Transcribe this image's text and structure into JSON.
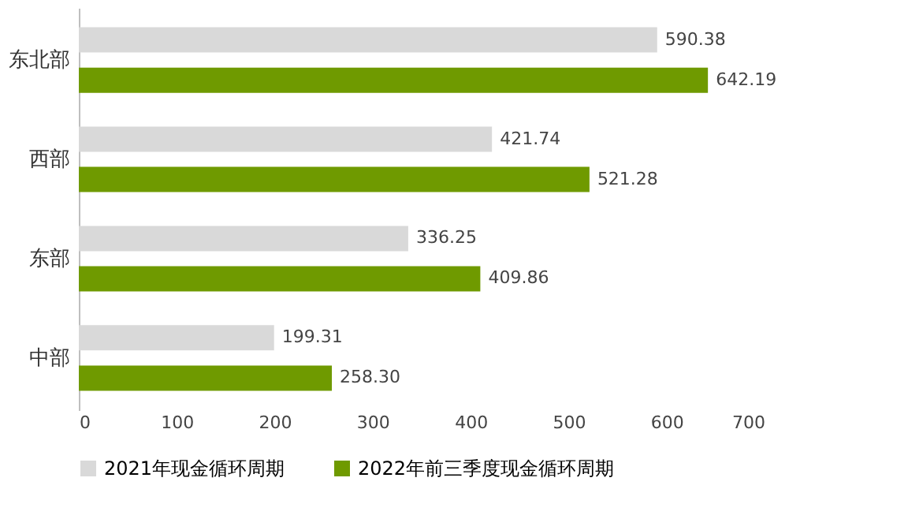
{
  "chart_data": {
    "type": "bar",
    "orientation": "horizontal",
    "categories": [
      "东北部",
      "西部",
      "东部",
      "中部"
    ],
    "series": [
      {
        "name": "2021年现金循环周期",
        "color": "#d9d9d9",
        "values": [
          590.38,
          421.74,
          336.25,
          199.31
        ],
        "value_labels": [
          "590.38",
          "421.74",
          "336.25",
          "199.31"
        ]
      },
      {
        "name": "2022年前三季度现金循环周期",
        "color": "#6f9a00",
        "values": [
          642.19,
          521.28,
          409.86,
          258.3
        ],
        "value_labels": [
          "642.19",
          "521.28",
          "409.86",
          "258.30"
        ]
      }
    ],
    "xlim": [
      0,
      700
    ],
    "xticks": [
      0,
      100,
      200,
      300,
      400,
      500,
      600,
      700
    ],
    "grid": false,
    "legend": "bottom"
  }
}
